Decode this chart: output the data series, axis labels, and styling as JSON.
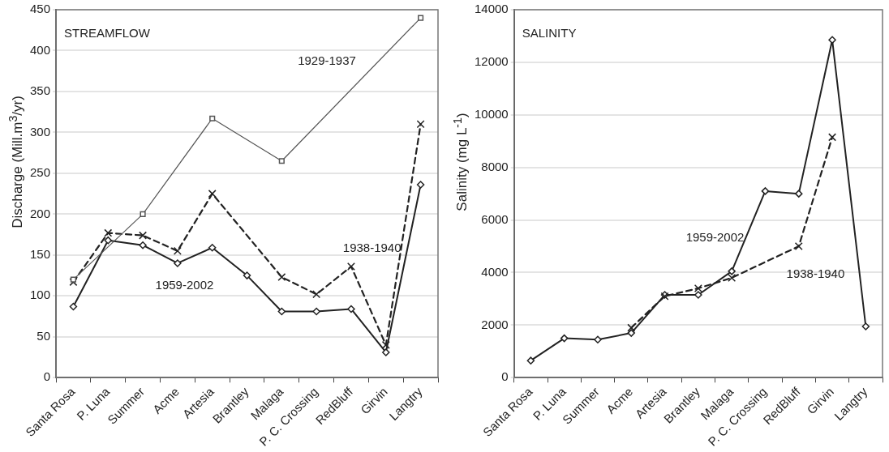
{
  "chart_data": [
    {
      "type": "line",
      "title": "STREAMFLOW",
      "ylabel": "Discharge (Mill.m$^{3}$/yr)",
      "categories": [
        "Santa Rosa",
        "P. Luna",
        "Summer",
        "Acme",
        "Artesia",
        "Brantley",
        "Malaga",
        "P. C. Crossing",
        "RedBluff",
        "Girvin",
        "Langtry"
      ],
      "series": [
        {
          "name": "1959-2002",
          "color": "#222222",
          "marker": "diamond",
          "line_style": "solid",
          "values": [
            87,
            168,
            162,
            140,
            159,
            125,
            81,
            81,
            84,
            31,
            236
          ]
        },
        {
          "name": "1938-1940",
          "color": "#222222",
          "marker": "cross",
          "line_style": "dashed",
          "values": [
            117,
            177,
            174,
            155,
            225,
            null,
            123,
            102,
            136,
            40,
            310
          ]
        },
        {
          "name": "1929-1937",
          "color": "#555555",
          "marker": "square",
          "line_style": "solid",
          "values": [
            120,
            null,
            200,
            null,
            317,
            null,
            265,
            null,
            null,
            null,
            440
          ]
        }
      ],
      "ylim": [
        0,
        450
      ],
      "yticks": [
        0,
        50,
        100,
        150,
        200,
        250,
        300,
        350,
        400,
        450
      ],
      "grid": "y",
      "legend": false
    },
    {
      "type": "line",
      "title": "SALINITY",
      "ylabel": "Salinity (mg L$^{-1}$)",
      "categories": [
        "Santa Rosa",
        "P. Luna",
        "Summer",
        "Acme",
        "Artesia",
        "Brantley",
        "Malaga",
        "P. C. Crossing",
        "RedBluff",
        "Girvin",
        "Langtry"
      ],
      "series": [
        {
          "name": "1959-2002",
          "color": "#222222",
          "marker": "diamond",
          "line_style": "solid",
          "values": [
            650,
            1500,
            1450,
            1700,
            3150,
            3150,
            4050,
            7100,
            7000,
            12850,
            1950
          ]
        },
        {
          "name": "1938-1940",
          "color": "#222222",
          "marker": "cross",
          "line_style": "dashed",
          "values": [
            null,
            null,
            null,
            1900,
            3100,
            3400,
            3800,
            null,
            5000,
            9150,
            null
          ]
        }
      ],
      "ylim": [
        0,
        14000
      ],
      "yticks": [
        0,
        2000,
        4000,
        6000,
        8000,
        10000,
        12000,
        14000
      ],
      "grid": "y",
      "legend": false
    }
  ]
}
